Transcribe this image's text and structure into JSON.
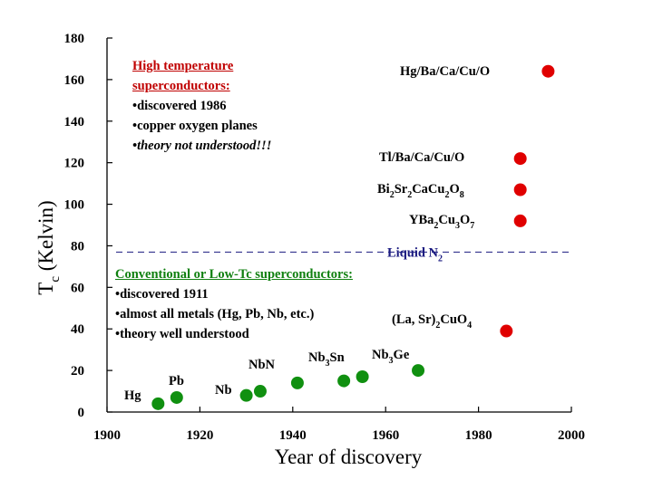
{
  "chart_data": {
    "type": "scatter",
    "xlabel": "Year of discovery",
    "ylabel": "T",
    "ylabel_sub": "c",
    "ylabel_rest": " (Kelvin)",
    "xlim": [
      1900,
      2000
    ],
    "ylim": [
      0,
      180
    ],
    "x_ticks": [
      "1900",
      "1920",
      "1940",
      "1960",
      "1980",
      "2000"
    ],
    "y_ticks": [
      "0",
      "20",
      "40",
      "60",
      "80",
      "100",
      "120",
      "140",
      "160",
      "180"
    ],
    "reference_line": {
      "y": 77,
      "style": "dashed",
      "color": "#1a1a80",
      "label": "Liquid N",
      "label_sub": "2"
    },
    "series": [
      {
        "color": "#109010",
        "points": [
          {
            "x": 1911,
            "y": 4
          },
          {
            "x": 1915,
            "y": 7
          },
          {
            "x": 1930,
            "y": 8
          },
          {
            "x": 1933,
            "y": 10
          },
          {
            "x": 1941,
            "y": 14
          },
          {
            "x": 1951,
            "y": 15
          },
          {
            "x": 1955,
            "y": 17
          },
          {
            "x": 1967,
            "y": 20
          }
        ]
      },
      {
        "color": "#e00000",
        "points": [
          {
            "x": 1986,
            "y": 39
          },
          {
            "x": 1989,
            "y": 92
          },
          {
            "x": 1989,
            "y": 107
          },
          {
            "x": 1989,
            "y": 122
          },
          {
            "x": 1995,
            "y": 164
          }
        ]
      }
    ],
    "annotations": [
      {
        "parts": [
          [
            "Hg",
            ""
          ]
        ]
      },
      {
        "parts": [
          [
            "Pb",
            ""
          ]
        ]
      },
      {
        "parts": [
          [
            "Nb",
            ""
          ]
        ]
      },
      {
        "parts": [
          [
            "NbN",
            ""
          ]
        ]
      },
      {
        "parts": [
          [
            "Nb",
            ""
          ],
          [
            "3",
            "sub"
          ],
          [
            "Sn",
            ""
          ]
        ]
      },
      {
        "parts": [
          [
            "Nb",
            ""
          ],
          [
            "3",
            "sub"
          ],
          [
            "Ge",
            ""
          ]
        ]
      },
      {
        "parts": [
          [
            "(La, Sr)",
            ""
          ],
          [
            "2",
            "sub"
          ],
          [
            "CuO",
            ""
          ],
          [
            "4",
            "sub"
          ]
        ]
      },
      {
        "parts": [
          [
            "YBa",
            ""
          ],
          [
            "2",
            "sub"
          ],
          [
            "Cu",
            ""
          ],
          [
            "3",
            "sub"
          ],
          [
            "O",
            ""
          ],
          [
            "7",
            "sub"
          ]
        ]
      },
      {
        "parts": [
          [
            "Bi",
            ""
          ],
          [
            "2",
            "sub"
          ],
          [
            "Sr",
            ""
          ],
          [
            "2",
            "sub"
          ],
          [
            "CaCu",
            ""
          ],
          [
            "2",
            "sub"
          ],
          [
            "O",
            ""
          ],
          [
            "8",
            "sub"
          ]
        ]
      },
      {
        "parts": [
          [
            "Tl/Ba/Ca/Cu/O",
            ""
          ]
        ]
      },
      {
        "parts": [
          [
            "Hg/Ba/Ca/Cu/O",
            ""
          ]
        ]
      }
    ]
  },
  "text_boxes": {
    "high": {
      "color": "#c00000",
      "title_line1": "High temperature",
      "title_line2": "superconductors:",
      "items": [
        "•discovered 1986",
        "•copper oxygen planes",
        "•theory not understood!!!"
      ]
    },
    "low": {
      "color": "#108010",
      "title": "Conventional or Low-Tc superconductors:",
      "items": [
        "•discovered 1911",
        "•almost all metals (Hg, Pb, Nb, etc.)",
        "•theory well understood"
      ]
    }
  }
}
